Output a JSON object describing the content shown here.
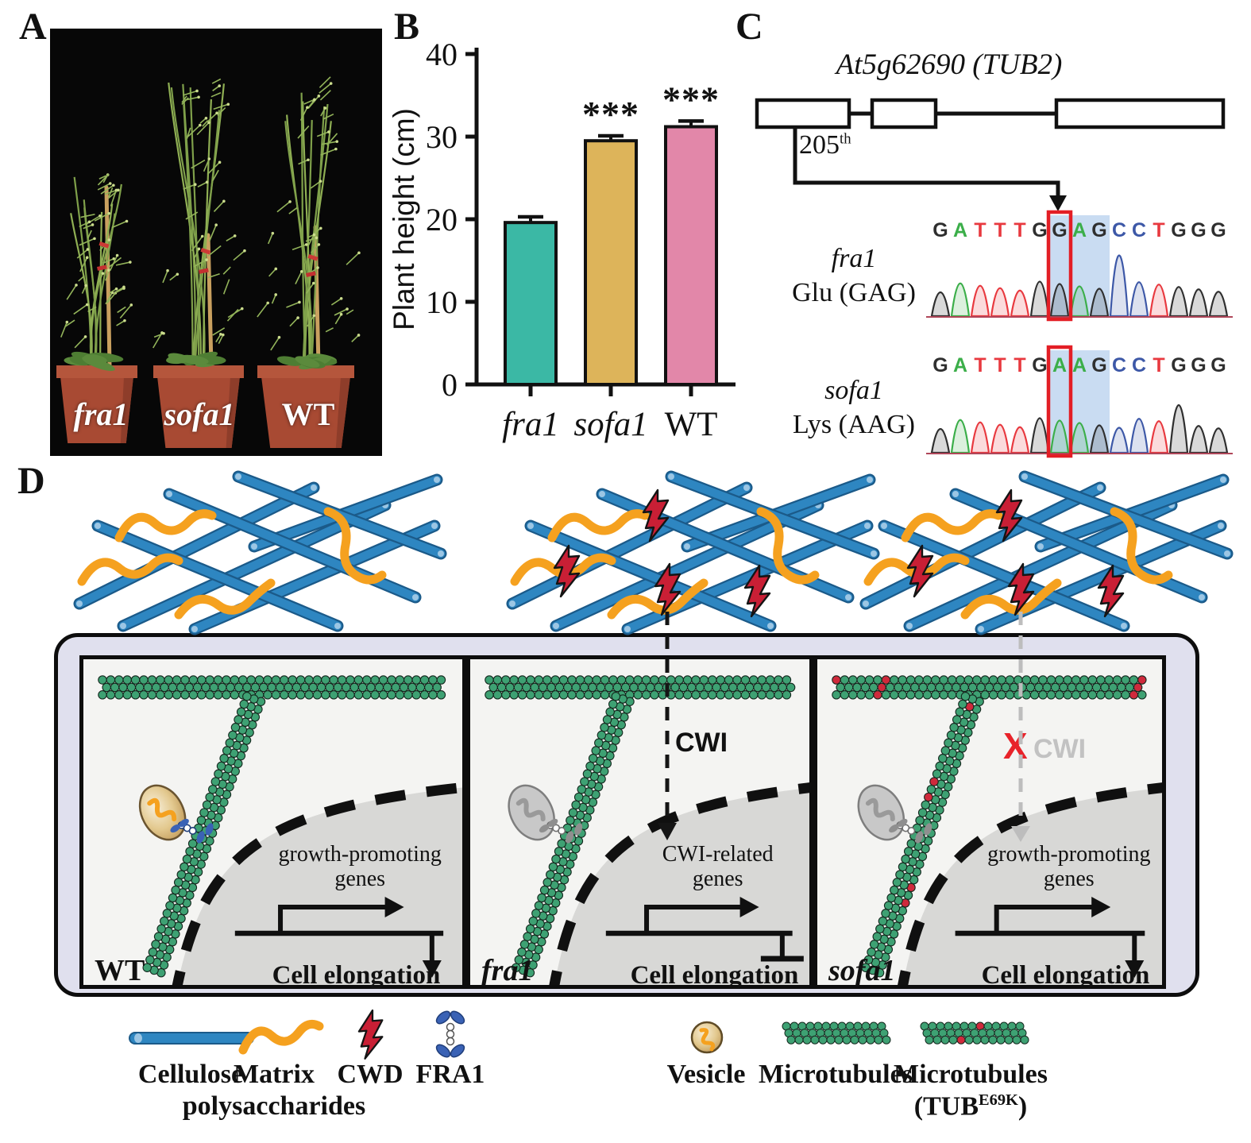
{
  "panels": {
    "a": {
      "label": "A",
      "plant_labels": [
        "fra1",
        "sofa1",
        "WT"
      ]
    },
    "b": {
      "label": "B"
    },
    "c": {
      "label": "C",
      "gene_title": "At5g62690 (TUB2)",
      "mutation_position": "205",
      "mutation_position_suffix": "th",
      "base_colors": {
        "G": "#2F2F2F",
        "A": "#3BAE49",
        "T": "#E8393F",
        "C": "#3D58A7"
      },
      "rows": [
        {
          "name": "fra1",
          "codon": "Glu (GAG)",
          "sequence": "GATTTGGAGCCTGGG",
          "highlight_start": 6,
          "highlight_len": 3,
          "boxed_base_index": 6,
          "tall_peak_index": 9
        },
        {
          "name": "sofa1",
          "codon": "Lys (AAG)",
          "sequence": "GATTTGAAGCCTGGG",
          "highlight_start": 6,
          "highlight_len": 3,
          "boxed_base_index": 6,
          "tall_peak_index": 12
        }
      ]
    },
    "d": {
      "label": "D",
      "walls": [
        {
          "name": "WT",
          "cwd_bolts": 0
        },
        {
          "name": "fra1",
          "cwd_bolts": 4
        },
        {
          "name": "sofa1",
          "cwd_bolts": 4
        }
      ],
      "cells": [
        {
          "name": "WT",
          "genes_line1": "growth-promoting",
          "genes_line2": "genes",
          "effect_label": "Cell elongation",
          "effect_type": "promote",
          "vesicle": "active",
          "mutant_dots": false
        },
        {
          "name": "fra1",
          "genes_line1": "CWI-related",
          "genes_line2": "genes",
          "effect_label": "Cell elongation",
          "effect_type": "inhibit",
          "cwi_label": "CWI",
          "cwi_blocked": false,
          "vesicle": "inactive",
          "mutant_dots": false
        },
        {
          "name": "sofa1",
          "genes_line1": "growth-promoting",
          "genes_line2": "genes",
          "effect_label": "Cell elongation",
          "effect_type": "promote",
          "cwi_label": "CWI",
          "cwi_blocked": true,
          "block_mark": "X",
          "vesicle": "inactive",
          "mutant_dots": true
        }
      ],
      "legend": [
        {
          "label": "Cellulose"
        },
        {
          "label": "Matrix",
          "sublabel": "polysaccharides"
        },
        {
          "label": "CWD"
        },
        {
          "label": "FRA1"
        },
        {
          "label": "Vesicle"
        },
        {
          "label": "Microtubules"
        },
        {
          "label": "Microtubules",
          "sublabel_pre": "(TUB",
          "sublabel_sup": "E69K",
          "sublabel_post": ")"
        }
      ]
    }
  },
  "chart_data": {
    "type": "bar",
    "title": "",
    "ylabel": "Plant height (cm)",
    "ylim": [
      0,
      40
    ],
    "yticks": [
      0,
      10,
      20,
      30,
      40
    ],
    "categories": [
      "fra1",
      "sofa1",
      "WT"
    ],
    "values": [
      19.6,
      29.5,
      31.2
    ],
    "errors": [
      0.5,
      0.4,
      0.5
    ],
    "significance": [
      "",
      "***",
      "***"
    ],
    "bar_colors": [
      "#3BB8A5",
      "#DDB45A",
      "#E287A9"
    ],
    "grid": false,
    "italic_categories": [
      true,
      true,
      false
    ]
  },
  "colors": {
    "cellulose": "#2E86C1",
    "cellulose_dark": "#1B5A89",
    "matrix": "#F5A11F",
    "cwd_red": "#C91F35",
    "microtubule_green": "#3EA173",
    "mutant_red": "#CF2A3C",
    "container_bg": "#E0E0EE",
    "cell_bg": "#F4F4F2",
    "nucleus_gray": "#D8D8D6",
    "highlight_blue": "#A8C6EA",
    "box_red": "#E31E25"
  }
}
